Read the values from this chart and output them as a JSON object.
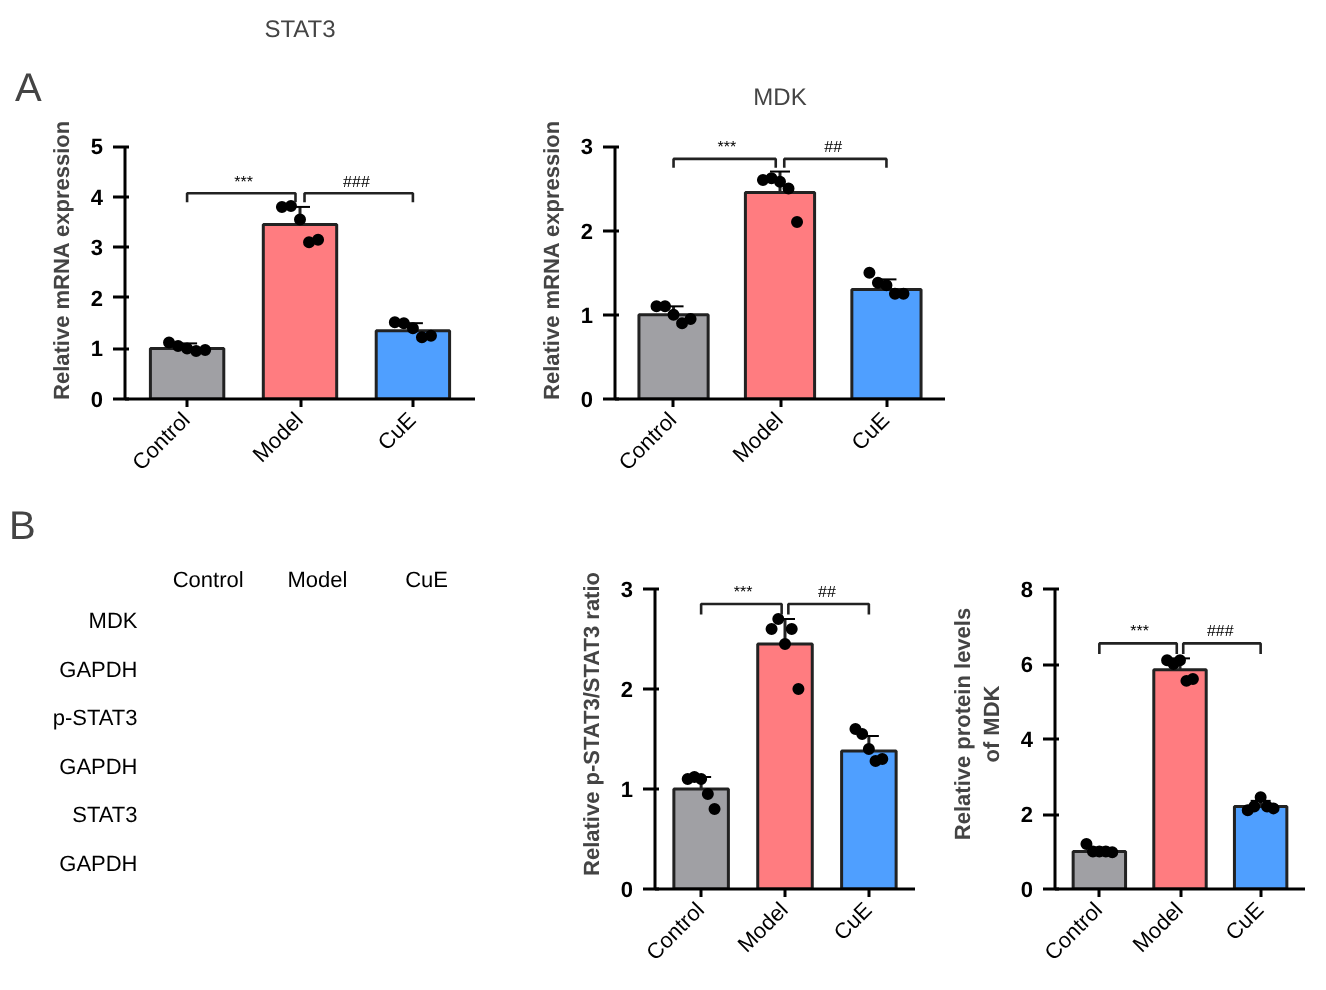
{
  "chart_data": [
    {
      "type": "bar",
      "title": "STAT3",
      "ylabel": "Relative mRNA expression",
      "categories": [
        "Control",
        "Model",
        "CuE"
      ],
      "annotations": [
        "A",
        "***",
        "###"
      ],
      "ylim": [
        0,
        5
      ],
      "yticks": [
        0,
        1,
        2,
        3,
        4,
        5
      ],
      "marker": "circle",
      "series": [
        {
          "type": "bar",
          "values": [
            1.0,
            3.45,
            1.35
          ],
          "colors": [
            "#a0a0a4",
            "#ff7c80",
            "#4f9fff"
          ],
          "errors": [
            0.1,
            0.35,
            0.15
          ]
        },
        {
          "type": "scatter",
          "color": "#000000",
          "x": [
            "Control",
            "Control",
            "Control",
            "Control",
            "Control",
            "Model",
            "Model",
            "Model",
            "Model",
            "Model",
            "CuE",
            "CuE",
            "CuE",
            "CuE",
            "CuE"
          ],
          "values": [
            1.12,
            1.05,
            1.0,
            0.95,
            0.97,
            3.8,
            3.82,
            3.55,
            3.1,
            3.15,
            1.52,
            1.5,
            1.4,
            1.22,
            1.25
          ]
        }
      ]
    },
    {
      "type": "bar",
      "title": "MDK",
      "ylabel": "Relative mRNA expression",
      "categories": [
        "Control",
        "Model",
        "CuE"
      ],
      "annotations": [
        "***",
        "##"
      ],
      "ylim": [
        0,
        3
      ],
      "yticks": [
        0,
        1,
        2,
        3
      ],
      "marker": "circle",
      "series": [
        {
          "type": "bar",
          "values": [
            1.0,
            2.45,
            1.3
          ],
          "colors": [
            "#a0a0a4",
            "#ff7c80",
            "#4f9fff"
          ],
          "errors": [
            0.1,
            0.25,
            0.12
          ]
        },
        {
          "type": "scatter",
          "color": "#000000",
          "x": [
            "Control",
            "Control",
            "Control",
            "Control",
            "Control",
            "Model",
            "Model",
            "Model",
            "Model",
            "Model",
            "CuE",
            "CuE",
            "CuE",
            "CuE",
            "CuE"
          ],
          "values": [
            1.1,
            1.1,
            1.0,
            0.9,
            0.95,
            2.6,
            2.62,
            2.58,
            2.5,
            2.1,
            1.5,
            1.38,
            1.35,
            1.25,
            1.25
          ]
        }
      ]
    },
    {
      "type": "other",
      "categories": [
        "Control",
        "Model",
        "CuE"
      ],
      "y_categories": [
        "MDK",
        "GAPDH",
        "p-STAT3",
        "GAPDH",
        "STAT3",
        "GAPDH"
      ],
      "annotations": [
        "B"
      ]
    },
    {
      "type": "bar",
      "ylabel": "Relative p-STAT3/STAT3 ratio",
      "categories": [
        "Control",
        "Model",
        "CuE"
      ],
      "annotations": [
        "***",
        "##"
      ],
      "ylim": [
        0,
        3
      ],
      "yticks": [
        0,
        1,
        2,
        3
      ],
      "marker": "circle",
      "series": [
        {
          "type": "bar",
          "values": [
            1.0,
            2.45,
            1.38
          ],
          "colors": [
            "#a0a0a4",
            "#ff7c80",
            "#4f9fff"
          ],
          "errors": [
            0.12,
            0.25,
            0.15
          ]
        },
        {
          "type": "scatter",
          "color": "#000000",
          "x": [
            "Control",
            "Control",
            "Control",
            "Control",
            "Control",
            "Model",
            "Model",
            "Model",
            "Model",
            "Model",
            "CuE",
            "CuE",
            "CuE",
            "CuE",
            "CuE"
          ],
          "values": [
            1.1,
            1.12,
            1.1,
            0.95,
            0.8,
            2.6,
            2.7,
            2.45,
            2.6,
            2.0,
            1.6,
            1.55,
            1.4,
            1.28,
            1.3
          ]
        }
      ]
    },
    {
      "type": "bar",
      "ylabel": "Relative protein levels\nof MDK",
      "categories": [
        "Control",
        "Model",
        "CuE"
      ],
      "annotations": [
        "***",
        "###"
      ],
      "ylim": [
        0,
        8
      ],
      "yticks": [
        0,
        2,
        4,
        6,
        8
      ],
      "marker": "circle",
      "series": [
        {
          "type": "bar",
          "values": [
            1.0,
            5.85,
            2.2
          ],
          "colors": [
            "#a0a0a4",
            "#ff7c80",
            "#4f9fff"
          ],
          "errors": [
            0.1,
            0.3,
            0.15
          ]
        },
        {
          "type": "scatter",
          "color": "#000000",
          "x": [
            "Control",
            "Control",
            "Control",
            "Control",
            "Control",
            "Model",
            "Model",
            "Model",
            "Model",
            "Model",
            "CuE",
            "CuE",
            "CuE",
            "CuE",
            "CuE"
          ],
          "values": [
            1.2,
            1.0,
            1.0,
            1.0,
            0.98,
            6.1,
            6.0,
            6.1,
            5.55,
            5.6,
            2.1,
            2.2,
            2.45,
            2.2,
            2.15
          ]
        }
      ]
    }
  ]
}
